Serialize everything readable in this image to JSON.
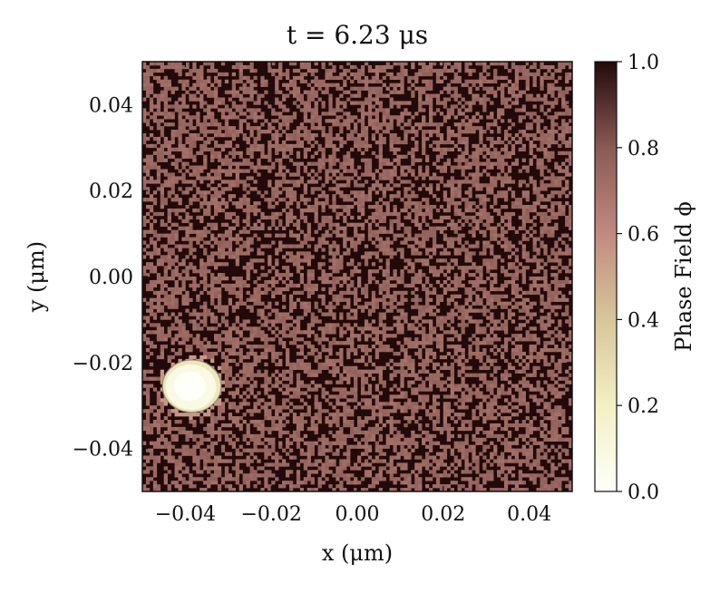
{
  "chart_data": {
    "type": "heatmap",
    "title": "t = 6.23 μs",
    "xlabel": "x (μm)",
    "ylabel": "y (μm)",
    "xlim": [
      -0.05,
      0.05
    ],
    "ylim": [
      -0.05,
      0.05
    ],
    "x_ticks": [
      -0.04,
      -0.02,
      0.0,
      0.02,
      0.04
    ],
    "x_tick_labels": [
      "−0.04",
      "−0.02",
      "0.00",
      "0.02",
      "0.04"
    ],
    "y_ticks": [
      0.04,
      0.02,
      0.0,
      -0.02,
      -0.04
    ],
    "y_tick_labels": [
      "0.04",
      "0.02",
      "0.00",
      "−0.02",
      "−0.04"
    ],
    "colorbar": {
      "label": "Phase Field ϕ",
      "range": [
        0.0,
        1.0
      ],
      "ticks": [
        0.0,
        0.2,
        0.4,
        0.6,
        0.8,
        1.0
      ],
      "tick_labels": [
        "0.0",
        "0.2",
        "0.4",
        "0.6",
        "0.8",
        "1.0"
      ],
      "colormap_stops": [
        {
          "value": 0.0,
          "color": "#fffffa"
        },
        {
          "value": 0.2,
          "color": "#f2f0c4"
        },
        {
          "value": 0.4,
          "color": "#d8c69a"
        },
        {
          "value": 0.6,
          "color": "#c08a80"
        },
        {
          "value": 0.8,
          "color": "#8a5a55"
        },
        {
          "value": 1.0,
          "color": "#230a0a"
        }
      ]
    },
    "field": {
      "grid_size": 120,
      "background_values": [
        0.7,
        1.0
      ],
      "bubble": {
        "center_x": -0.0385,
        "center_y": -0.0255,
        "radius": 0.0062,
        "value": 0.0
      }
    }
  }
}
